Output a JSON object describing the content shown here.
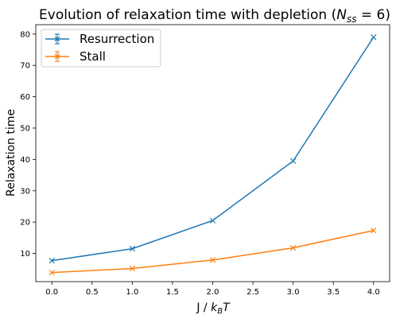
{
  "chart_data": {
    "type": "line",
    "title": "Evolution of relaxation time with depletion (N_ss = 6)",
    "title_parts": {
      "prefix": "Evolution of relaxation time with depletion (",
      "symbol": "N",
      "subscript": "ss",
      "suffix": " = 6)"
    },
    "xlabel": "J / k_BT",
    "xlabel_parts": {
      "prefix": "J / ",
      "symbol": "k",
      "subscript": "B",
      "suffix": "T"
    },
    "ylabel": "Relaxation time",
    "x": [
      0.0,
      1.0,
      2.0,
      3.0,
      4.0
    ],
    "xlim": [
      -0.2,
      4.2
    ],
    "ylim": [
      1.0,
      83.0
    ],
    "xticks": [
      "0.0",
      "0.5",
      "1.0",
      "1.5",
      "2.0",
      "2.5",
      "3.0",
      "3.5",
      "4.0"
    ],
    "yticks": [
      "10",
      "20",
      "30",
      "40",
      "50",
      "60",
      "70",
      "80"
    ],
    "grid": false,
    "legend_position": "top-left",
    "series": [
      {
        "name": "Resurrection",
        "color": "#1f77b4",
        "marker": "x",
        "error_bars": true,
        "values": [
          7.7,
          11.5,
          20.5,
          39.5,
          79.0
        ]
      },
      {
        "name": "Stall",
        "color": "#ff7f0e",
        "marker": "x",
        "error_bars": true,
        "values": [
          3.9,
          5.2,
          7.9,
          11.8,
          17.3
        ]
      }
    ]
  }
}
